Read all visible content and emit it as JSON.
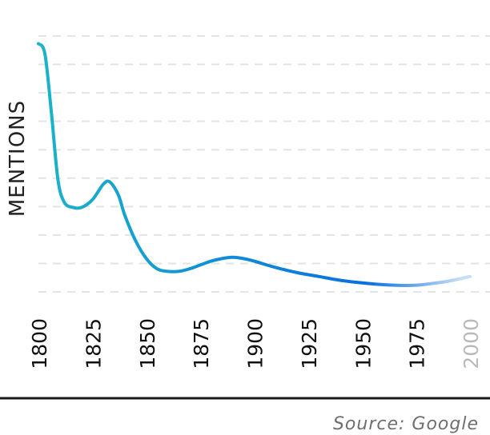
{
  "chart_data": {
    "type": "line",
    "ylabel": "MENTIONS",
    "xlabel": "",
    "xlim": [
      1800,
      2000
    ],
    "ylim": [
      0,
      100
    ],
    "x_ticks": [
      "1800",
      "1825",
      "1850",
      "1875",
      "1900",
      "1925",
      "1950",
      "1975",
      "2000"
    ],
    "grid": true,
    "series": [
      {
        "x": [
          1800,
          1803,
          1806,
          1809,
          1812,
          1816,
          1820,
          1825,
          1830,
          1833,
          1837,
          1840,
          1845,
          1850,
          1855,
          1860,
          1865,
          1870,
          1875,
          1880,
          1885,
          1890,
          1895,
          1900,
          1910,
          1920,
          1930,
          1940,
          1950,
          1960,
          1970,
          1975,
          1980,
          1990,
          2000
        ],
        "y": [
          97,
          93,
          70,
          44,
          35,
          33,
          33,
          36,
          42,
          43,
          38,
          30,
          20,
          13,
          9,
          8,
          8,
          9,
          10.5,
          12,
          13,
          13.5,
          13,
          12,
          9.5,
          7.5,
          6,
          4.5,
          3.5,
          2.8,
          2.5,
          2.6,
          3,
          4.2,
          6
        ]
      }
    ],
    "colors": {
      "line_start": "#1bb4c9",
      "line_end": "#0a6fe0",
      "line_fade": "#b5d0f4"
    }
  },
  "source": "Source: Google"
}
